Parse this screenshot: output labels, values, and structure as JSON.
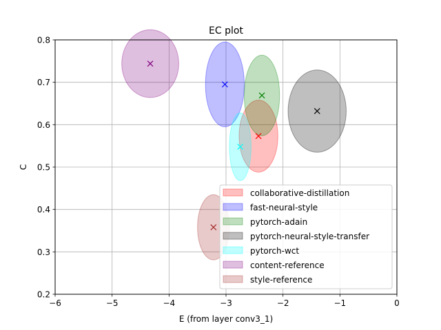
{
  "chart_data": {
    "type": "scatter",
    "title": "EC plot",
    "xlabel": "E (from layer conv3_1)",
    "ylabel": "C",
    "xlim": [
      -6,
      0
    ],
    "ylim": [
      0.2,
      0.8
    ],
    "xticks": [
      -6,
      -5,
      -4,
      -3,
      -2,
      -1,
      0
    ],
    "yticks": [
      0.2,
      0.3,
      0.4,
      0.5,
      0.6,
      0.7,
      0.8
    ],
    "xtick_labels": [
      "−6",
      "−5",
      "−4",
      "−3",
      "−2",
      "−1",
      "0"
    ],
    "ytick_labels": [
      "0.2",
      "0.3",
      "0.4",
      "0.5",
      "0.6",
      "0.7",
      "0.8"
    ],
    "grid": true,
    "legend_position": "lower-right",
    "series": [
      {
        "name": "collaborative-distillation",
        "color": "#ff0000",
        "x": -2.43,
        "y": 0.573,
        "spread_x": 0.34,
        "spread_y": 0.085
      },
      {
        "name": "fast-neural-style",
        "color": "#0000ff",
        "x": -3.02,
        "y": 0.695,
        "spread_x": 0.34,
        "spread_y": 0.1
      },
      {
        "name": "pytorch-adain",
        "color": "#008000",
        "x": -2.37,
        "y": 0.669,
        "spread_x": 0.31,
        "spread_y": 0.095
      },
      {
        "name": "pytorch-neural-style-transfer",
        "color": "#000000",
        "x": -1.4,
        "y": 0.632,
        "spread_x": 0.51,
        "spread_y": 0.097
      },
      {
        "name": "pytorch-wct",
        "color": "#00ffff",
        "x": -2.75,
        "y": 0.548,
        "spread_x": 0.19,
        "spread_y": 0.08
      },
      {
        "name": "content-reference",
        "color": "#800080",
        "x": -4.33,
        "y": 0.744,
        "spread_x": 0.5,
        "spread_y": 0.08
      },
      {
        "name": "style-reference",
        "color": "#a52a2a",
        "x": -3.22,
        "y": 0.358,
        "spread_x": 0.28,
        "spread_y": 0.077
      }
    ]
  }
}
